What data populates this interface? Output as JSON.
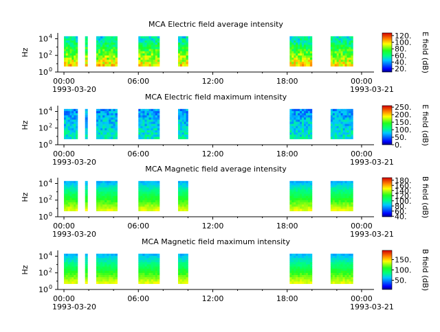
{
  "chart_data": [
    {
      "type": "heatmap",
      "title": "MCA  Electric field average intensity",
      "ylabel": "Hz",
      "y_ticks": [
        "10^0",
        "10^2",
        "10^4"
      ],
      "y_range_hz": [
        1,
        50000
      ],
      "x_ticks": [
        "00:00",
        "06:00",
        "12:00",
        "18:00",
        "00:00"
      ],
      "x_range_hours": [
        -0.5,
        25.0
      ],
      "date_start": "1993-03-20",
      "date_end": "1993-03-21",
      "colorbar_label": "E field (dB)",
      "colorbar_ticks": [
        "20.",
        "40.",
        "60.",
        "80.",
        "100.",
        "120."
      ],
      "colorbar_range": [
        10,
        128
      ],
      "data_intervals_hours": [
        [
          0.0,
          1.1
        ],
        [
          1.7,
          1.9
        ],
        [
          2.6,
          4.3
        ],
        [
          6.0,
          7.7
        ],
        [
          9.2,
          10.0
        ],
        [
          18.2,
          20.0
        ],
        [
          21.5,
          23.3
        ]
      ],
      "mean_level_db": 75
    },
    {
      "type": "heatmap",
      "title": "MCA  Electric field maximum intensity",
      "ylabel": "Hz",
      "y_ticks": [
        "10^0",
        "10^2",
        "10^4"
      ],
      "y_range_hz": [
        1,
        50000
      ],
      "x_ticks": [
        "00:00",
        "06:00",
        "12:00",
        "18:00",
        "00:00"
      ],
      "x_range_hours": [
        -0.5,
        25.0
      ],
      "date_start": "1993-03-20",
      "date_end": "1993-03-21",
      "colorbar_label": "E field (dB)",
      "colorbar_ticks": [
        "0.",
        "50.",
        "100.",
        "150.",
        "200.",
        "250."
      ],
      "colorbar_range": [
        0,
        260
      ],
      "data_intervals_hours": [
        [
          0.0,
          1.1
        ],
        [
          1.7,
          1.9
        ],
        [
          2.6,
          4.3
        ],
        [
          6.0,
          7.7
        ],
        [
          9.2,
          10.0
        ],
        [
          18.2,
          20.0
        ],
        [
          21.5,
          23.3
        ]
      ],
      "mean_level_db": 95
    },
    {
      "type": "heatmap",
      "title": "MCA  Magnetic field average intensity",
      "ylabel": "Hz",
      "y_ticks": [
        "10^0",
        "10^2",
        "10^4"
      ],
      "y_range_hz": [
        1,
        50000
      ],
      "x_ticks": [
        "00:00",
        "06:00",
        "12:00",
        "18:00",
        "00:00"
      ],
      "x_range_hours": [
        -0.5,
        25.0
      ],
      "date_start": "1993-03-20",
      "date_end": "1993-03-21",
      "colorbar_label": "B field (dB)",
      "colorbar_ticks": [
        "40.",
        "60.",
        "80.",
        "100.",
        "120.",
        "140.",
        "160.",
        "180."
      ],
      "colorbar_range": [
        38,
        190
      ],
      "data_intervals_hours": [
        [
          0.0,
          1.1
        ],
        [
          1.7,
          1.9
        ],
        [
          2.6,
          4.3
        ],
        [
          6.0,
          7.7
        ],
        [
          9.2,
          10.0
        ],
        [
          18.2,
          20.0
        ],
        [
          21.5,
          23.3
        ]
      ],
      "mean_level_db": 120
    },
    {
      "type": "heatmap",
      "title": "MCA  Magnetic field maximum intensity",
      "ylabel": "Hz",
      "y_ticks": [
        "10^0",
        "10^2",
        "10^4"
      ],
      "y_range_hz": [
        1,
        50000
      ],
      "x_ticks": [
        "00:00",
        "06:00",
        "12:00",
        "18:00",
        "00:00"
      ],
      "x_range_hours": [
        -0.5,
        25.0
      ],
      "date_start": "1993-03-20",
      "date_end": "1993-03-21",
      "colorbar_label": "B field (dB)",
      "colorbar_ticks": [
        "50.",
        "100.",
        "150."
      ],
      "colorbar_range": [
        5,
        195
      ],
      "data_intervals_hours": [
        [
          0.0,
          1.1
        ],
        [
          1.7,
          1.9
        ],
        [
          2.6,
          4.3
        ],
        [
          6.0,
          7.7
        ],
        [
          9.2,
          10.0
        ],
        [
          18.2,
          20.0
        ],
        [
          21.5,
          23.3
        ]
      ],
      "mean_level_db": 120
    }
  ]
}
